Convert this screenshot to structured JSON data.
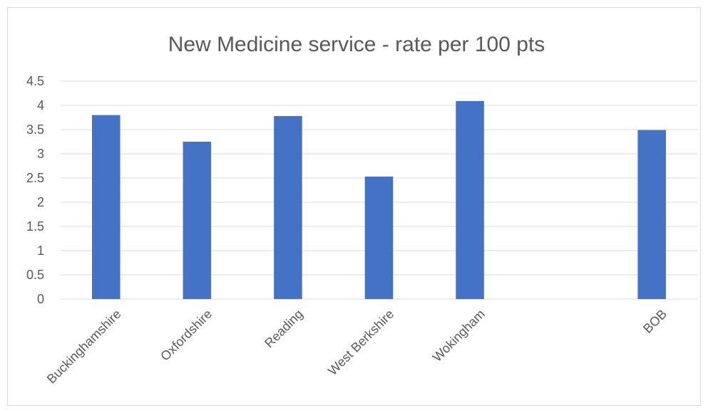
{
  "chart_data": {
    "type": "bar",
    "title": "New Medicine service - rate per 100 pts",
    "categories": [
      "Buckinghamshire",
      "Oxfordshire",
      "Reading",
      "West Berkshire",
      "Wokingham",
      "",
      "BOB"
    ],
    "values": [
      3.8,
      3.25,
      3.78,
      2.53,
      4.09,
      null,
      3.49
    ],
    "ylim": [
      0,
      4.5
    ],
    "yticks": [
      "0",
      "0.5",
      "1",
      "1.5",
      "2",
      "2.5",
      "3",
      "3.5",
      "4",
      "4.5"
    ],
    "grid": true,
    "bar_color": "#4472C4",
    "grid_color": "#d9d9d9",
    "text_color": "#595959"
  }
}
